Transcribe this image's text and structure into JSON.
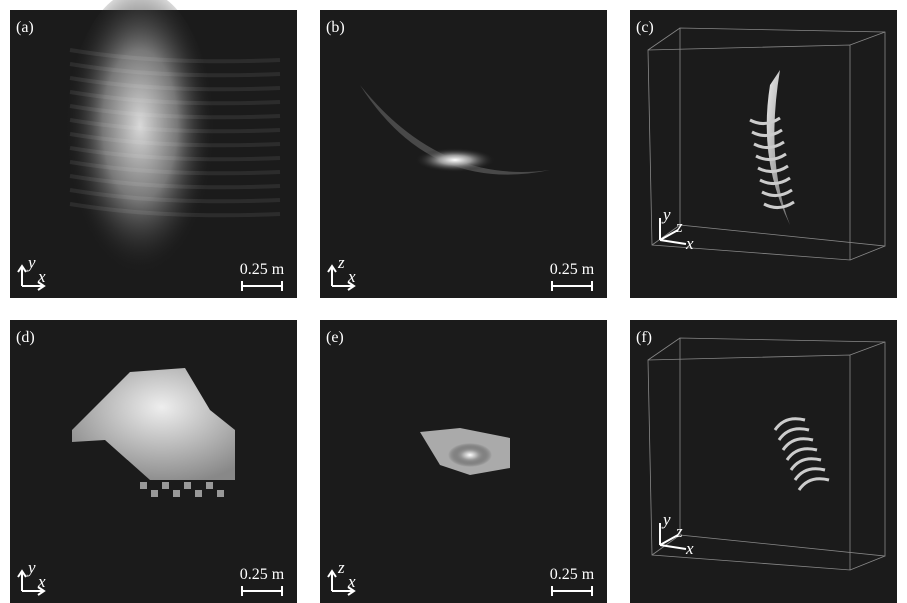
{
  "panels": [
    {
      "label": "(a)",
      "axes": [
        "y",
        "x"
      ],
      "scale": "0.25 m"
    },
    {
      "label": "(b)",
      "axes": [
        "z",
        "x"
      ],
      "scale": "0.25 m"
    },
    {
      "label": "(c)",
      "axes": [
        "y",
        "z",
        "x"
      ]
    },
    {
      "label": "(d)",
      "axes": [
        "y",
        "x"
      ],
      "scale": "0.25 m"
    },
    {
      "label": "(e)",
      "axes": [
        "z",
        "x"
      ],
      "scale": "0.25 m"
    },
    {
      "label": "(f)",
      "axes": [
        "y",
        "z",
        "x"
      ]
    }
  ]
}
